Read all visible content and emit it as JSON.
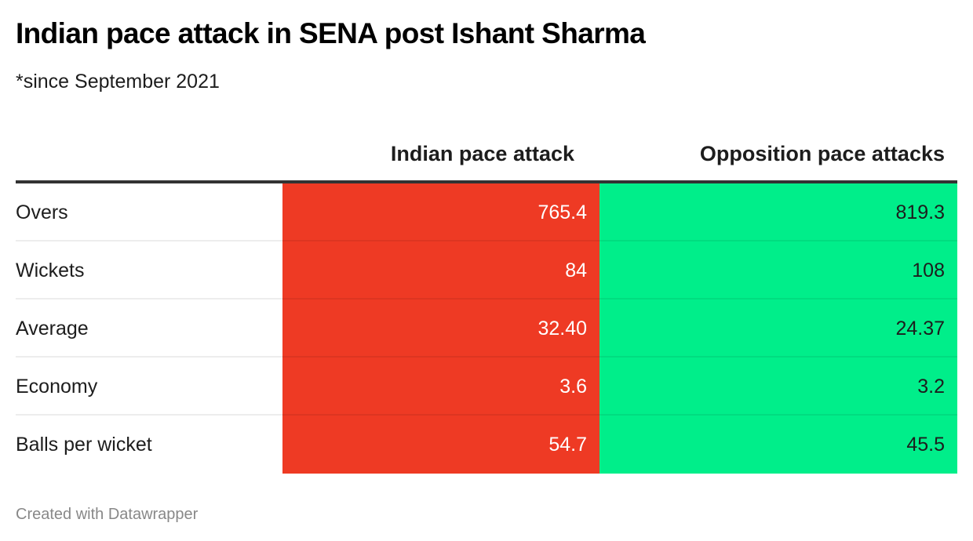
{
  "chart_data": {
    "type": "table",
    "title": "Indian pace attack in SENA post Ishant Sharma",
    "subtitle": "*since September 2021",
    "columns": [
      "",
      "Indian pace attack",
      "Opposition pace attacks"
    ],
    "column_colors": [
      "#ee3a24",
      "#00ee8a"
    ],
    "rows": [
      {
        "label": "Overs",
        "values": [
          "765.4",
          "819.3"
        ]
      },
      {
        "label": "Wickets",
        "values": [
          "84",
          "108"
        ]
      },
      {
        "label": "Average",
        "values": [
          "32.40",
          "24.37"
        ]
      },
      {
        "label": "Economy",
        "values": [
          "3.6",
          "3.2"
        ]
      },
      {
        "label": "Balls per wicket",
        "values": [
          "54.7",
          "45.5"
        ]
      }
    ],
    "credit": "Created with Datawrapper"
  }
}
